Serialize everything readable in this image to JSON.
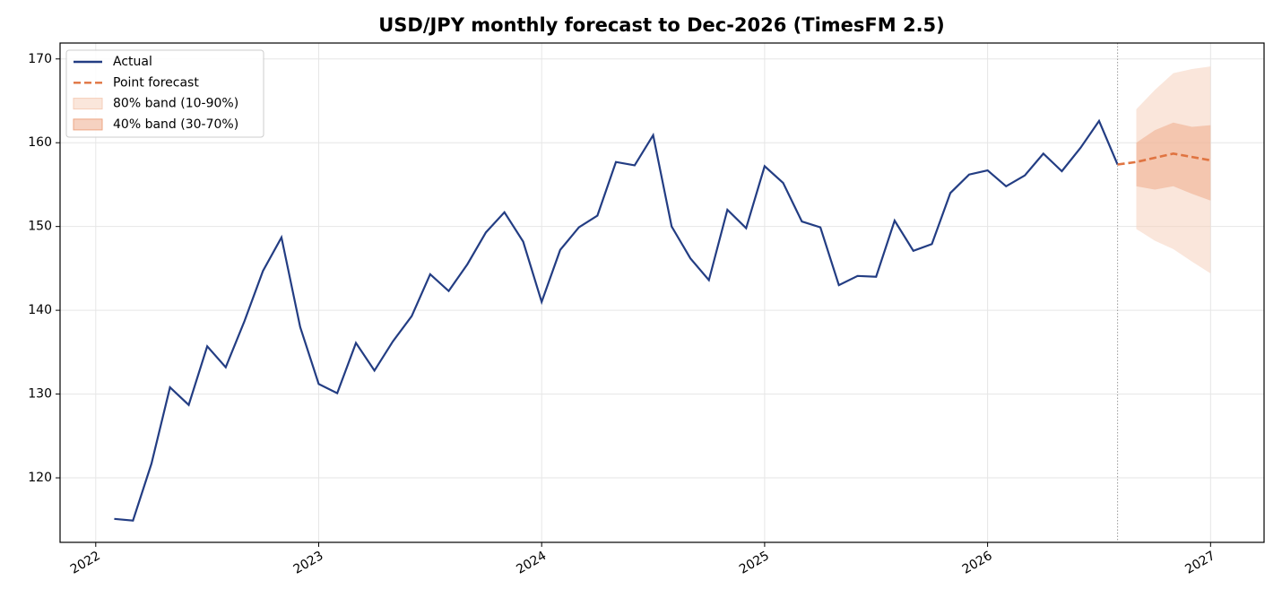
{
  "chart_data": {
    "type": "line",
    "title": "USD/JPY monthly forecast to Dec-2026 (TimesFM 2.5)",
    "xlim": [
      2021.84,
      2027.24
    ],
    "ylim": [
      112.3,
      171.9
    ],
    "xticks": [
      2022,
      2023,
      2024,
      2025,
      2026,
      2027
    ],
    "yticks": [
      120,
      130,
      140,
      150,
      160,
      170
    ],
    "grid": true,
    "legend": "upper left",
    "forecast_start": 2026.583,
    "series": [
      {
        "name": "Actual",
        "color": "#233d83",
        "style": "solid",
        "x": [
          2022.083,
          2022.167,
          2022.25,
          2022.333,
          2022.417,
          2022.5,
          2022.583,
          2022.667,
          2022.75,
          2022.833,
          2022.917,
          2023.0,
          2023.083,
          2023.167,
          2023.25,
          2023.333,
          2023.417,
          2023.5,
          2023.583,
          2023.667,
          2023.75,
          2023.833,
          2023.917,
          2024.0,
          2024.083,
          2024.167,
          2024.25,
          2024.333,
          2024.417,
          2024.5,
          2024.583,
          2024.667,
          2024.75,
          2024.833,
          2024.917,
          2025.0,
          2025.083,
          2025.167,
          2025.25,
          2025.333,
          2025.417,
          2025.5,
          2025.583,
          2025.667,
          2025.75,
          2025.833,
          2025.917,
          2026.0,
          2026.083,
          2026.167,
          2026.25,
          2026.333,
          2026.417,
          2026.5,
          2026.583
        ],
        "values": [
          115.1,
          114.9,
          121.7,
          130.8,
          128.7,
          135.7,
          133.2,
          138.7,
          144.7,
          148.7,
          138.0,
          131.2,
          130.1,
          136.1,
          132.8,
          136.3,
          139.3,
          144.3,
          142.3,
          145.5,
          149.3,
          151.7,
          148.2,
          141.0,
          147.2,
          149.9,
          151.3,
          157.7,
          157.3,
          160.9,
          150.0,
          146.2,
          143.6,
          152.0,
          149.8,
          157.2,
          155.2,
          150.6,
          149.9,
          143.0,
          144.1,
          144.0,
          150.7,
          147.1,
          147.9,
          154.0,
          156.2,
          156.7,
          154.8,
          156.1,
          158.7,
          156.6,
          159.4,
          162.6,
          157.4
        ]
      },
      {
        "name": "Point forecast",
        "color": "#e07441",
        "style": "dashed",
        "x": [
          2026.583,
          2026.667,
          2026.75,
          2026.833,
          2026.917,
          2027.0
        ],
        "values": [
          157.4,
          157.7,
          158.2,
          158.7,
          158.3,
          157.9
        ]
      },
      {
        "name": "80% band (10-90%)",
        "color": "#f6cdb8",
        "style": "band",
        "x": [
          2026.667,
          2026.75,
          2026.833,
          2026.917,
          2027.0
        ],
        "upper": [
          164.0,
          166.3,
          168.3,
          168.8,
          169.1
        ],
        "lower": [
          149.7,
          148.3,
          147.3,
          145.8,
          144.4
        ]
      },
      {
        "name": "40% band (30-70%)",
        "color": "#eea583",
        "style": "band",
        "x": [
          2026.667,
          2026.75,
          2026.833,
          2026.917,
          2027.0
        ],
        "upper": [
          160.0,
          161.5,
          162.4,
          161.9,
          162.1
        ],
        "lower": [
          154.8,
          154.4,
          154.8,
          153.9,
          153.1
        ]
      }
    ]
  }
}
